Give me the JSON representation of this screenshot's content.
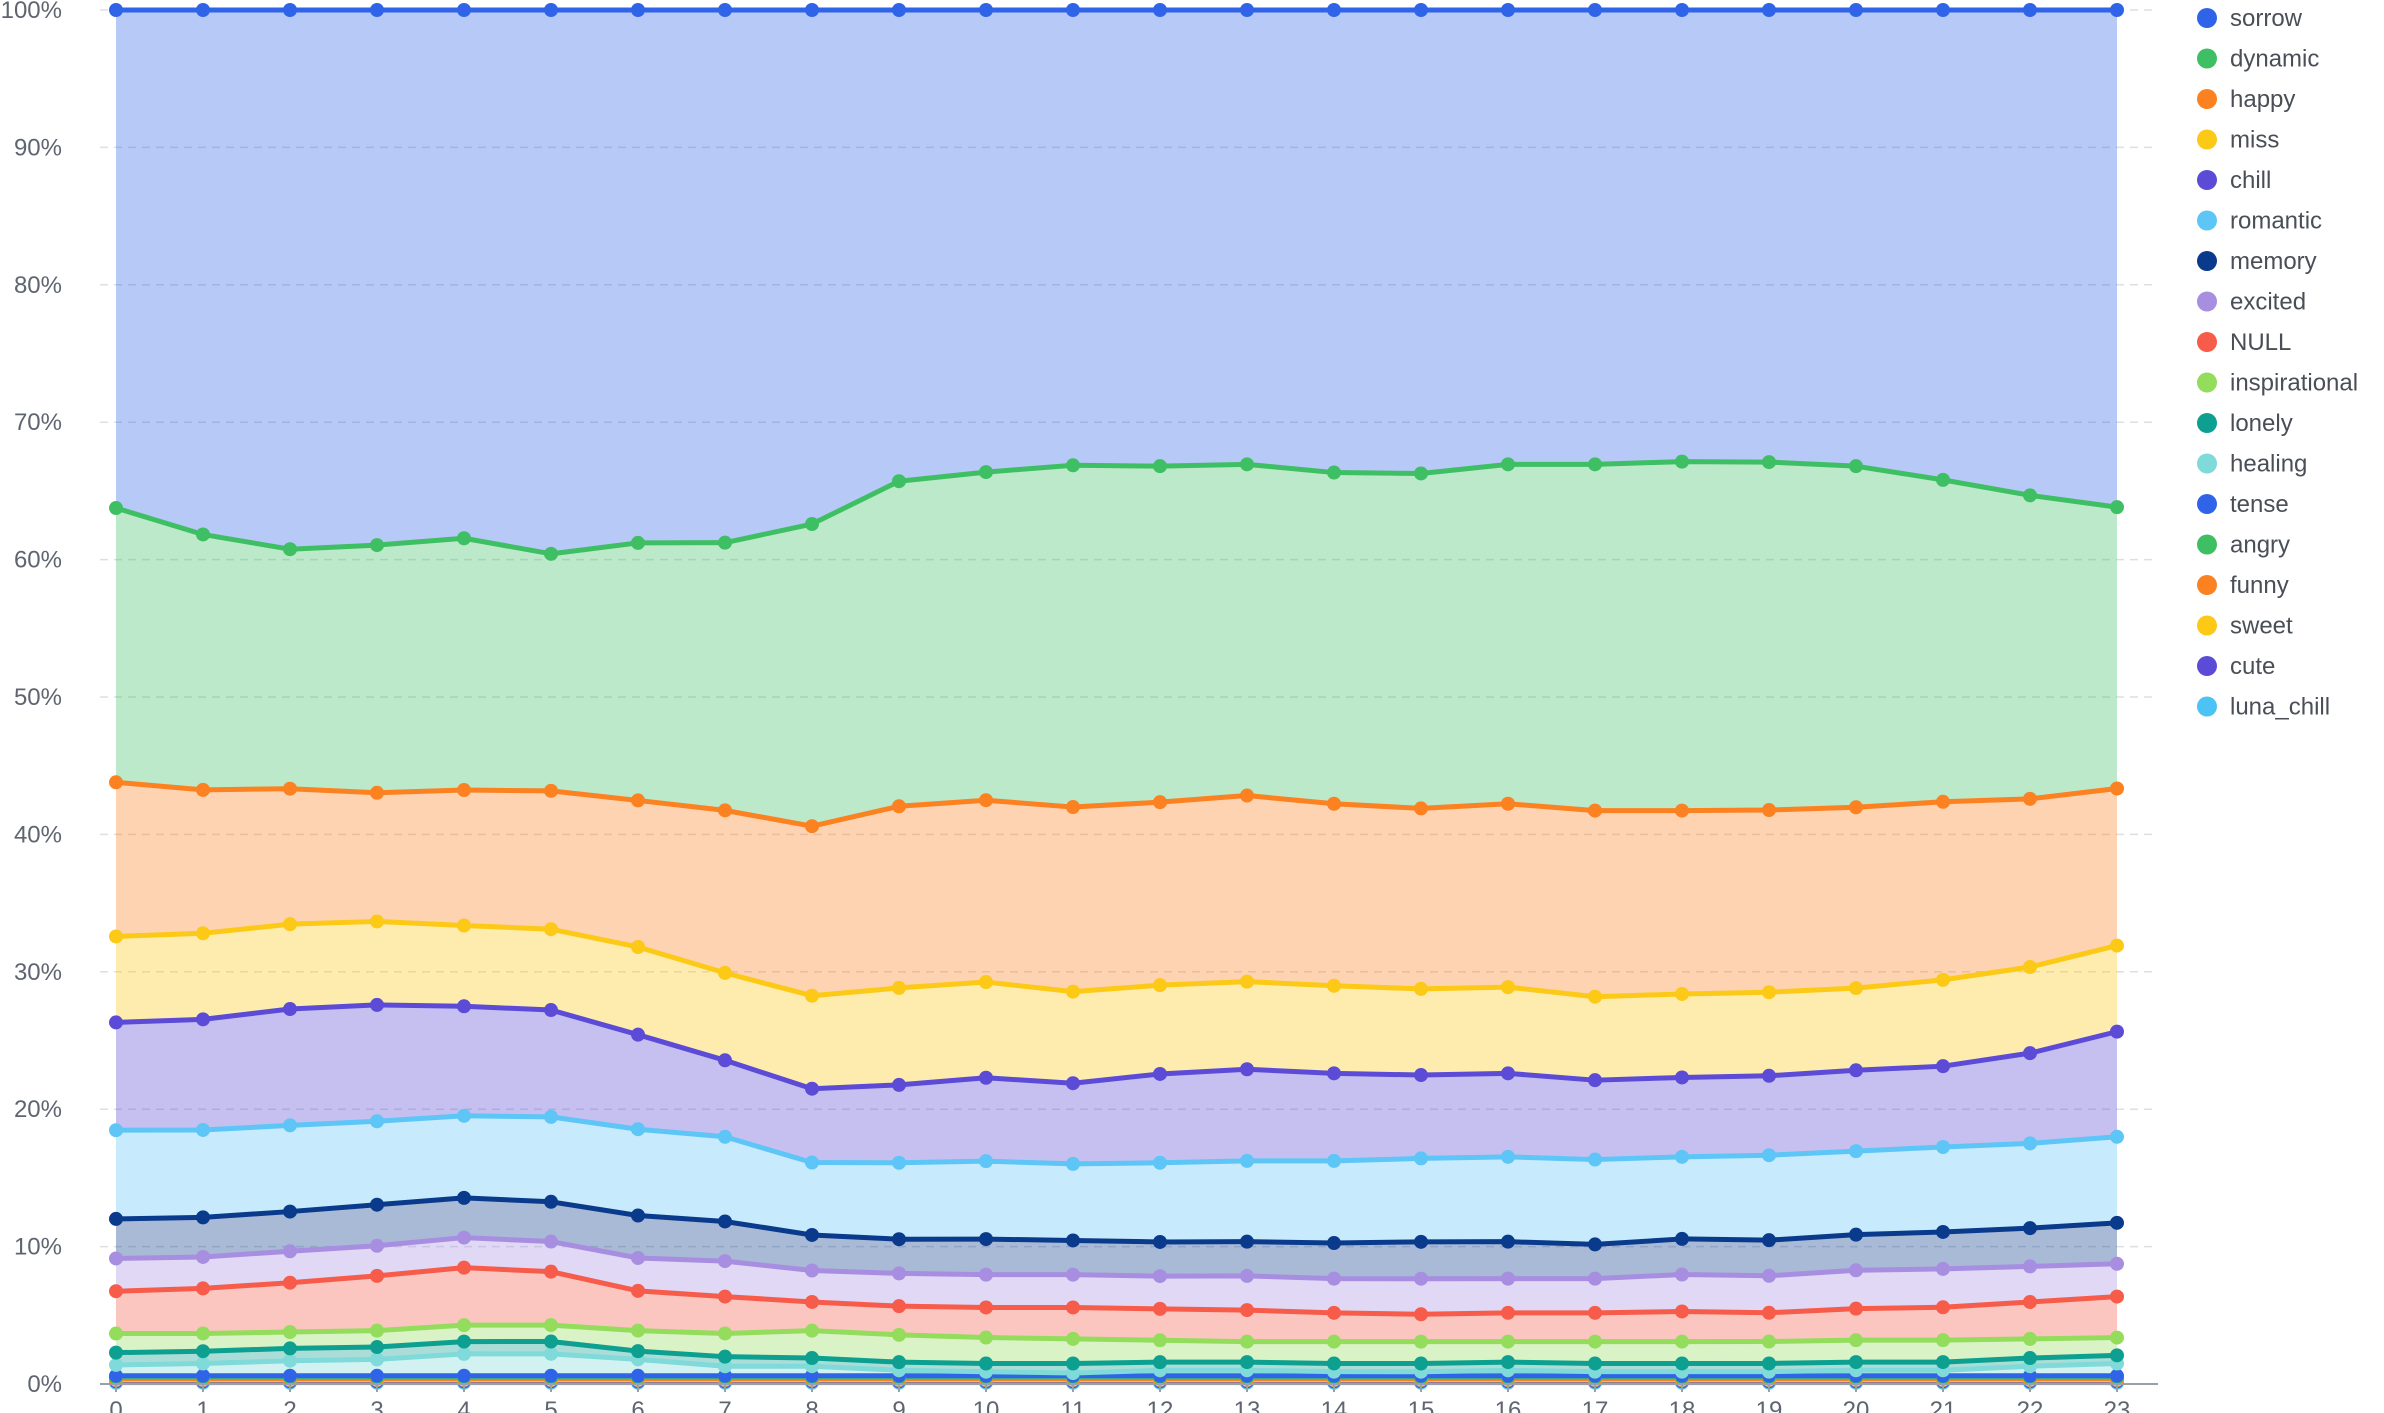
{
  "chart_data": {
    "type": "area",
    "stacked": true,
    "normalized": true,
    "x_label": "",
    "y_label": "",
    "x": [
      0,
      1,
      2,
      3,
      4,
      5,
      6,
      7,
      8,
      9,
      10,
      11,
      12,
      13,
      14,
      15,
      16,
      17,
      18,
      19,
      20,
      21,
      22,
      23
    ],
    "x_ticks": [
      "0",
      "1",
      "2",
      "3",
      "4",
      "5",
      "6",
      "7",
      "8",
      "9",
      "10",
      "11",
      "12",
      "13",
      "14",
      "15",
      "16",
      "17",
      "18",
      "19",
      "20",
      "21",
      "22",
      "23"
    ],
    "y_ticks": [
      "0%",
      "10%",
      "20%",
      "30%",
      "40%",
      "50%",
      "60%",
      "70%",
      "80%",
      "90%",
      "100%"
    ],
    "ylim": [
      0,
      100
    ],
    "grid": "horizontal-dashed",
    "legend_position": "right",
    "series": [
      {
        "name": "luna_chill",
        "color": "#4cc3f5",
        "values": [
          0.1,
          0.1,
          0.1,
          0.1,
          0.1,
          0.1,
          0.1,
          0.1,
          0.1,
          0.1,
          0.1,
          0.1,
          0.1,
          0.1,
          0.1,
          0.1,
          0.1,
          0.1,
          0.1,
          0.1,
          0.1,
          0.1,
          0.1,
          0.1
        ]
      },
      {
        "name": "cute",
        "color": "#5b4bd6",
        "values": [
          0.1,
          0.1,
          0.1,
          0.1,
          0.1,
          0.1,
          0.1,
          0.1,
          0.1,
          0.1,
          0.1,
          0.1,
          0.1,
          0.1,
          0.1,
          0.1,
          0.1,
          0.1,
          0.1,
          0.1,
          0.1,
          0.1,
          0.1,
          0.1
        ]
      },
      {
        "name": "sweet",
        "color": "#fcc916",
        "values": [
          0.1,
          0.1,
          0.1,
          0.1,
          0.1,
          0.1,
          0.1,
          0.1,
          0.1,
          0.1,
          0.1,
          0.1,
          0.1,
          0.1,
          0.1,
          0.1,
          0.1,
          0.1,
          0.1,
          0.1,
          0.1,
          0.1,
          0.1,
          0.1
        ]
      },
      {
        "name": "funny",
        "color": "#fb8121",
        "values": [
          0.1,
          0.1,
          0.1,
          0.1,
          0.1,
          0.1,
          0.1,
          0.1,
          0.1,
          0.1,
          0.1,
          0.1,
          0.1,
          0.1,
          0.1,
          0.1,
          0.1,
          0.1,
          0.1,
          0.1,
          0.1,
          0.1,
          0.1,
          0.1
        ]
      },
      {
        "name": "angry",
        "color": "#3fbf63",
        "values": [
          0.1,
          0.1,
          0.1,
          0.1,
          0.1,
          0.1,
          0.1,
          0.1,
          0.1,
          0.1,
          0.1,
          0.1,
          0.1,
          0.1,
          0.1,
          0.1,
          0.1,
          0.1,
          0.1,
          0.1,
          0.1,
          0.1,
          0.1,
          0.1
        ]
      },
      {
        "name": "tense",
        "color": "#2f64e8",
        "values": [
          0.1,
          0.1,
          0.1,
          0.1,
          0.1,
          0.1,
          0.1,
          0.1,
          0.1,
          0.1,
          0.1,
          0.1,
          0.1,
          0.1,
          0.1,
          0.1,
          0.1,
          0.1,
          0.1,
          0.1,
          0.1,
          0.1,
          0.1,
          0.1
        ]
      },
      {
        "name": "healing",
        "color": "#7fdad9",
        "values": [
          0.8,
          0.9,
          1.1,
          1.2,
          1.6,
          1.6,
          1.2,
          0.7,
          0.7,
          0.4,
          0.3,
          0.2,
          0.4,
          0.4,
          0.3,
          0.3,
          0.4,
          0.3,
          0.3,
          0.3,
          0.4,
          0.4,
          0.7,
          0.9
        ]
      },
      {
        "name": "lonely",
        "color": "#0d9f8f",
        "values": [
          0.9,
          0.9,
          0.9,
          0.9,
          0.9,
          0.9,
          0.6,
          0.7,
          0.6,
          0.6,
          0.6,
          0.7,
          0.6,
          0.6,
          0.6,
          0.6,
          0.6,
          0.6,
          0.6,
          0.6,
          0.6,
          0.6,
          0.6,
          0.6
        ]
      },
      {
        "name": "inspirational",
        "color": "#93dc5c",
        "values": [
          1.4,
          1.3,
          1.2,
          1.2,
          1.2,
          1.2,
          1.5,
          1.7,
          2.0,
          2.0,
          1.9,
          1.8,
          1.6,
          1.5,
          1.6,
          1.6,
          1.5,
          1.6,
          1.6,
          1.6,
          1.6,
          1.6,
          1.4,
          1.3
        ]
      },
      {
        "name": "NULL",
        "color": "#f75b4a",
        "values": [
          3.1,
          3.3,
          3.6,
          4.0,
          4.2,
          3.9,
          2.9,
          2.7,
          2.1,
          2.1,
          2.2,
          2.3,
          2.3,
          2.3,
          2.1,
          2.0,
          2.1,
          2.1,
          2.2,
          2.1,
          2.3,
          2.4,
          2.7,
          3.0
        ]
      },
      {
        "name": "excited",
        "color": "#a78ee0",
        "values": [
          2.4,
          2.3,
          2.3,
          2.2,
          2.2,
          2.2,
          2.4,
          2.6,
          2.3,
          2.4,
          2.4,
          2.4,
          2.4,
          2.5,
          2.5,
          2.6,
          2.5,
          2.5,
          2.7,
          2.7,
          2.8,
          2.8,
          2.6,
          2.4
        ]
      },
      {
        "name": "memory",
        "color": "#0a3a8c",
        "values": [
          2.9,
          2.9,
          2.9,
          3.0,
          2.9,
          2.9,
          3.1,
          2.9,
          2.6,
          2.5,
          2.6,
          2.5,
          2.5,
          2.5,
          2.6,
          2.7,
          2.7,
          2.5,
          2.6,
          2.6,
          2.6,
          2.7,
          2.8,
          3.0
        ]
      },
      {
        "name": "romantic",
        "color": "#5ec5f7",
        "values": [
          6.5,
          6.4,
          6.3,
          6.1,
          6.0,
          6.2,
          6.3,
          6.2,
          5.3,
          5.6,
          5.7,
          5.6,
          5.8,
          5.9,
          6.0,
          6.1,
          6.2,
          6.2,
          6.0,
          6.2,
          6.1,
          6.2,
          6.2,
          6.3
        ]
      },
      {
        "name": "chill",
        "color": "#5b4bd6",
        "values": [
          7.9,
          8.1,
          8.5,
          8.5,
          8.0,
          7.8,
          6.9,
          5.6,
          5.4,
          5.7,
          6.1,
          5.9,
          6.5,
          6.7,
          6.4,
          6.1,
          6.1,
          5.8,
          5.8,
          5.8,
          5.9,
          5.9,
          6.6,
          7.7
        ]
      },
      {
        "name": "miss",
        "color": "#fcc916",
        "values": [
          6.3,
          6.3,
          6.2,
          6.1,
          5.9,
          5.9,
          6.4,
          6.4,
          6.8,
          7.1,
          7.0,
          6.7,
          6.5,
          6.4,
          6.4,
          6.3,
          6.3,
          6.1,
          6.1,
          6.1,
          6.0,
          6.3,
          6.3,
          6.3
        ]
      },
      {
        "name": "happy",
        "color": "#fb8121",
        "values": [
          11.3,
          10.5,
          9.9,
          9.4,
          9.9,
          10.1,
          10.7,
          11.9,
          12.4,
          13.3,
          13.3,
          13.5,
          13.4,
          13.6,
          13.3,
          13.2,
          13.4,
          13.6,
          13.4,
          13.3,
          13.2,
          13.0,
          12.3,
          11.5
        ]
      },
      {
        "name": "dynamic",
        "color": "#3fbf63",
        "values": [
          20.1,
          18.7,
          17.5,
          18.1,
          18.4,
          17.3,
          18.8,
          19.6,
          22.1,
          23.8,
          24.0,
          25.0,
          24.6,
          24.2,
          24.2,
          24.5,
          24.8,
          25.3,
          25.5,
          25.4,
          24.9,
          23.5,
          22.2,
          20.6
        ]
      },
      {
        "name": "sorrow",
        "color": "#2f64e8",
        "values": [
          36.5,
          38.4,
          39.4,
          39.1,
          38.6,
          39.7,
          38.9,
          39.0,
          37.6,
          34.5,
          33.8,
          33.3,
          33.4,
          33.2,
          33.8,
          33.9,
          33.2,
          33.2,
          33.0,
          33.0,
          33.3,
          34.3,
          35.5,
          36.4
        ]
      }
    ],
    "legend": [
      "sorrow",
      "dynamic",
      "happy",
      "miss",
      "chill",
      "romantic",
      "memory",
      "excited",
      "NULL",
      "inspirational",
      "lonely",
      "healing",
      "tense",
      "angry",
      "funny",
      "sweet",
      "cute",
      "luna_chill"
    ]
  }
}
